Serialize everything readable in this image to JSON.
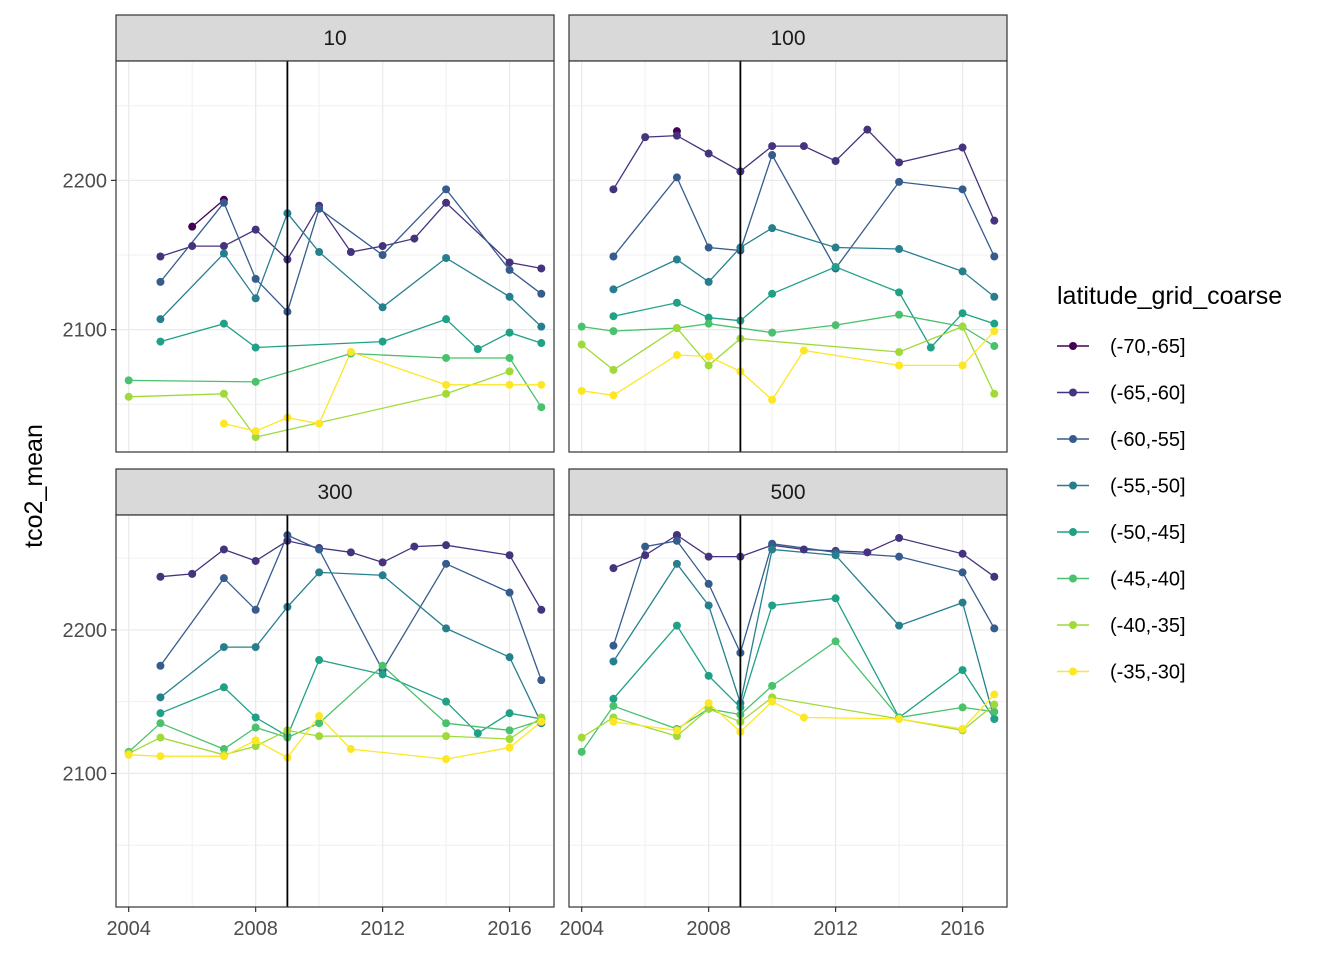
{
  "chart_data": {
    "type": "line",
    "ylabel": "tco2_mean",
    "xlabel": "",
    "xlim": [
      2003.6,
      2017.4
    ],
    "x_ticks": [
      2004,
      2008,
      2012,
      2016
    ],
    "x_tick_labels": [
      "2004",
      "2008",
      "2012",
      "2016"
    ],
    "vline_x": 2009,
    "grid": true,
    "legend": {
      "title": "latitude_grid_coarse",
      "placement": "right",
      "entries": [
        {
          "label": "(-70,-65]",
          "color": "#440154"
        },
        {
          "label": "(-65,-60]",
          "color": "#46337e"
        },
        {
          "label": "(-60,-55]",
          "color": "#365c8d"
        },
        {
          "label": "(-55,-50]",
          "color": "#277f8e"
        },
        {
          "label": "(-50,-45]",
          "color": "#1fa187"
        },
        {
          "label": "(-45,-40]",
          "color": "#4ac16d"
        },
        {
          "label": "(-40,-35]",
          "color": "#a0da39"
        },
        {
          "label": "(-35,-30]",
          "color": "#fde725"
        }
      ]
    },
    "rows": [
      {
        "ylim": [
          2018,
          2280
        ],
        "y_ticks": [
          2100,
          2200
        ],
        "y_tick_labels": [
          "2100",
          "2200"
        ]
      },
      {
        "ylim": [
          2007,
          2280
        ],
        "y_ticks": [
          2100,
          2200
        ],
        "y_tick_labels": [
          "2100",
          "2200"
        ]
      }
    ],
    "panels": [
      {
        "title": "10",
        "series": [
          {
            "name": "(-70,-65]",
            "x": [
              2006,
              2007
            ],
            "y": [
              2169,
              2187
            ]
          },
          {
            "name": "(-65,-60]",
            "x": [
              2005,
              2006,
              2007,
              2008,
              2009,
              2010,
              2011,
              2012,
              2013,
              2014,
              2016,
              2017
            ],
            "y": [
              2149,
              2156,
              2156,
              2167,
              2147,
              2183,
              2152,
              2156,
              2161,
              2185,
              2145,
              2141
            ]
          },
          {
            "name": "(-60,-55]",
            "x": [
              2005,
              2007,
              2008,
              2009,
              2010,
              2012,
              2014,
              2016,
              2017
            ],
            "y": [
              2132,
              2185,
              2134,
              2112,
              2181,
              2150,
              2194,
              2140,
              2124
            ]
          },
          {
            "name": "(-55,-50]",
            "x": [
              2005,
              2007,
              2008,
              2009,
              2010,
              2012,
              2014,
              2016,
              2017
            ],
            "y": [
              2107,
              2151,
              2121,
              2178,
              2152,
              2115,
              2148,
              2122,
              2102
            ]
          },
          {
            "name": "(-50,-45]",
            "x": [
              2005,
              2007,
              2008,
              2012,
              2014,
              2015,
              2016,
              2017
            ],
            "y": [
              2092,
              2104,
              2088,
              2092,
              2107,
              2087,
              2098,
              2091
            ]
          },
          {
            "name": "(-45,-40]",
            "x": [
              2004,
              2008,
              2011,
              2014,
              2016,
              2017
            ],
            "y": [
              2066,
              2065,
              2084,
              2081,
              2081,
              2048
            ]
          },
          {
            "name": "(-40,-35]",
            "x": [
              2004,
              2007,
              2008,
              2014,
              2016
            ],
            "y": [
              2055,
              2057,
              2028,
              2057,
              2072
            ]
          },
          {
            "name": "(-35,-30]",
            "x": [
              2007,
              2008,
              2009,
              2010,
              2011,
              2014,
              2016,
              2017
            ],
            "y": [
              2037,
              2032,
              2041,
              2037,
              2085,
              2063,
              2063,
              2063
            ]
          }
        ]
      },
      {
        "title": "100",
        "series": [
          {
            "name": "(-70,-65]",
            "x": [
              2007
            ],
            "y": [
              2233
            ]
          },
          {
            "name": "(-65,-60]",
            "x": [
              2005,
              2006,
              2007,
              2008,
              2009,
              2010,
              2011,
              2012,
              2013,
              2014,
              2016,
              2017
            ],
            "y": [
              2194,
              2229,
              2230,
              2218,
              2206,
              2223,
              2223,
              2213,
              2234,
              2212,
              2222,
              2173
            ]
          },
          {
            "name": "(-60,-55]",
            "x": [
              2005,
              2007,
              2008,
              2009,
              2010,
              2012,
              2014,
              2016,
              2017
            ],
            "y": [
              2149,
              2202,
              2155,
              2153,
              2217,
              2141,
              2199,
              2194,
              2149
            ]
          },
          {
            "name": "(-55,-50]",
            "x": [
              2005,
              2007,
              2008,
              2009,
              2010,
              2012,
              2014,
              2016,
              2017
            ],
            "y": [
              2127,
              2147,
              2132,
              2155,
              2168,
              2155,
              2154,
              2139,
              2122
            ]
          },
          {
            "name": "(-50,-45]",
            "x": [
              2005,
              2007,
              2008,
              2009,
              2010,
              2012,
              2014,
              2015,
              2016,
              2017
            ],
            "y": [
              2109,
              2118,
              2108,
              2106,
              2124,
              2142,
              2125,
              2088,
              2111,
              2104
            ]
          },
          {
            "name": "(-45,-40]",
            "x": [
              2004,
              2005,
              2007,
              2008,
              2010,
              2012,
              2014,
              2016,
              2017
            ],
            "y": [
              2102,
              2099,
              2101,
              2104,
              2098,
              2103,
              2110,
              2102,
              2089
            ]
          },
          {
            "name": "(-40,-35]",
            "x": [
              2004,
              2005,
              2007,
              2008,
              2009,
              2014,
              2016,
              2017
            ],
            "y": [
              2090,
              2073,
              2101,
              2076,
              2094,
              2085,
              2102,
              2057
            ]
          },
          {
            "name": "(-35,-30]",
            "x": [
              2004,
              2005,
              2007,
              2008,
              2009,
              2010,
              2011,
              2014,
              2016,
              2017
            ],
            "y": [
              2059,
              2056,
              2083,
              2082,
              2072,
              2053,
              2086,
              2076,
              2076,
              2099
            ]
          }
        ]
      },
      {
        "title": "300",
        "series": [
          {
            "name": "(-65,-60]",
            "x": [
              2005,
              2006,
              2007,
              2008,
              2009,
              2010,
              2011,
              2012,
              2013,
              2014,
              2016,
              2017
            ],
            "y": [
              2237,
              2239,
              2256,
              2248,
              2262,
              2257,
              2254,
              2247,
              2258,
              2259,
              2252,
              2214
            ]
          },
          {
            "name": "(-60,-55]",
            "x": [
              2005,
              2007,
              2008,
              2009,
              2010,
              2012,
              2014,
              2016,
              2017
            ],
            "y": [
              2175,
              2236,
              2214,
              2266,
              2256,
              2172,
              2246,
              2226,
              2165
            ]
          },
          {
            "name": "(-55,-50]",
            "x": [
              2005,
              2007,
              2008,
              2009,
              2010,
              2012,
              2014,
              2016,
              2017
            ],
            "y": [
              2153,
              2188,
              2188,
              2216,
              2240,
              2238,
              2201,
              2181,
              2135
            ]
          },
          {
            "name": "(-50,-45]",
            "x": [
              2005,
              2007,
              2008,
              2009,
              2010,
              2012,
              2014,
              2015,
              2016,
              2017
            ],
            "y": [
              2142,
              2160,
              2139,
              2126,
              2179,
              2169,
              2150,
              2128,
              2142,
              2138
            ]
          },
          {
            "name": "(-45,-40]",
            "x": [
              2004,
              2005,
              2007,
              2008,
              2009,
              2010,
              2012,
              2014,
              2016,
              2017
            ],
            "y": [
              2115,
              2135,
              2117,
              2132,
              2125,
              2135,
              2175,
              2135,
              2130,
              2137
            ]
          },
          {
            "name": "(-40,-35]",
            "x": [
              2004,
              2005,
              2007,
              2008,
              2009,
              2010,
              2014,
              2016,
              2017
            ],
            "y": [
              2114,
              2125,
              2113,
              2119,
              2130,
              2126,
              2126,
              2124,
              2139
            ]
          },
          {
            "name": "(-35,-30]",
            "x": [
              2004,
              2005,
              2007,
              2008,
              2009,
              2010,
              2011,
              2014,
              2016,
              2017
            ],
            "y": [
              2113,
              2112,
              2112,
              2123,
              2111,
              2140,
              2117,
              2110,
              2118,
              2136
            ]
          }
        ]
      },
      {
        "title": "500",
        "series": [
          {
            "name": "(-70,-65]",
            "x": [
              2007
            ],
            "y": [
              2266
            ]
          },
          {
            "name": "(-65,-60]",
            "x": [
              2005,
              2006,
              2007,
              2008,
              2009,
              2010,
              2011,
              2012,
              2013,
              2014,
              2016,
              2017
            ],
            "y": [
              2243,
              2252,
              2266,
              2251,
              2251,
              2259,
              2256,
              2255,
              2254,
              2264,
              2253,
              2237
            ]
          },
          {
            "name": "(-60,-55]",
            "x": [
              2005,
              2006,
              2007,
              2008,
              2009,
              2010,
              2012,
              2014,
              2016,
              2017
            ],
            "y": [
              2189,
              2258,
              2262,
              2232,
              2184,
              2260,
              2254,
              2251,
              2240,
              2201
            ]
          },
          {
            "name": "(-55,-50]",
            "x": [
              2005,
              2007,
              2008,
              2009,
              2010,
              2012,
              2014,
              2016,
              2017
            ],
            "y": [
              2178,
              2246,
              2217,
              2149,
              2256,
              2252,
              2203,
              2219,
              2138
            ]
          },
          {
            "name": "(-50,-45]",
            "x": [
              2005,
              2007,
              2008,
              2009,
              2010,
              2012,
              2014,
              2016,
              2017
            ],
            "y": [
              2152,
              2203,
              2168,
              2146,
              2217,
              2222,
              2139,
              2172,
              2138
            ]
          },
          {
            "name": "(-45,-40]",
            "x": [
              2004,
              2005,
              2007,
              2008,
              2009,
              2010,
              2012,
              2014,
              2016,
              2017
            ],
            "y": [
              2115,
              2147,
              2131,
              2145,
              2141,
              2161,
              2192,
              2139,
              2146,
              2143
            ]
          },
          {
            "name": "(-40,-35]",
            "x": [
              2004,
              2005,
              2007,
              2008,
              2009,
              2010,
              2014,
              2016,
              2017
            ],
            "y": [
              2125,
              2139,
              2126,
              2145,
              2136,
              2153,
              2138,
              2130,
              2148
            ]
          },
          {
            "name": "(-35,-30]",
            "x": [
              2005,
              2007,
              2008,
              2009,
              2010,
              2011,
              2014,
              2016,
              2017
            ],
            "y": [
              2136,
              2130,
              2149,
              2129,
              2150,
              2139,
              2138,
              2131,
              2155
            ]
          }
        ]
      }
    ]
  }
}
